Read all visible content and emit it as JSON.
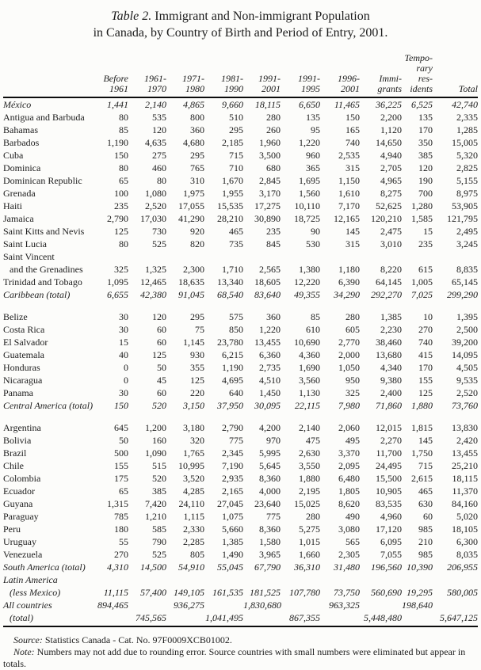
{
  "title": {
    "table_label": "Table 2.",
    "line1": " Immigrant and Non-immigrant Population",
    "line2": "in Canada, by Country of Birth and Period of Entry, 2001."
  },
  "colors": {
    "ink": "#1c1c1c",
    "background": "#fcfcfa",
    "rule": "#0c0c0c"
  },
  "table": {
    "columns": [
      "",
      "Before\n1961",
      "1961-\n1970",
      "1971-\n1980",
      "1981-\n1990",
      "1991-\n2001",
      "1991-\n1995",
      "1996-\n2001",
      "Immi-\ngrants",
      "Tempo-\nrary res-\nidents",
      "Total"
    ],
    "rows": [
      {
        "label": "México",
        "italic": true,
        "values": [
          "1,441",
          "2,140",
          "4,865",
          "9,660",
          "18,115",
          "6,650",
          "11,465",
          "36,225",
          "6,525",
          "42,740"
        ]
      },
      {
        "label": "Antigua and Barbuda",
        "values": [
          "80",
          "535",
          "800",
          "510",
          "280",
          "135",
          "150",
          "2,200",
          "135",
          "2,335"
        ]
      },
      {
        "label": "Bahamas",
        "values": [
          "85",
          "120",
          "360",
          "295",
          "260",
          "95",
          "165",
          "1,120",
          "170",
          "1,285"
        ]
      },
      {
        "label": "Barbados",
        "values": [
          "1,190",
          "4,635",
          "4,680",
          "2,185",
          "1,960",
          "1,220",
          "740",
          "14,650",
          "350",
          "15,005"
        ]
      },
      {
        "label": "Cuba",
        "values": [
          "150",
          "275",
          "295",
          "715",
          "3,500",
          "960",
          "2,535",
          "4,940",
          "385",
          "5,320"
        ]
      },
      {
        "label": "Dominica",
        "values": [
          "80",
          "460",
          "765",
          "710",
          "680",
          "365",
          "315",
          "2,705",
          "120",
          "2,825"
        ]
      },
      {
        "label": "Dominican Republic",
        "values": [
          "65",
          "80",
          "310",
          "1,670",
          "2,845",
          "1,695",
          "1,150",
          "4,965",
          "190",
          "5,155"
        ]
      },
      {
        "label": "Grenada",
        "values": [
          "100",
          "1,080",
          "1,975",
          "1,955",
          "3,170",
          "1,560",
          "1,610",
          "8,275",
          "700",
          "8,975"
        ]
      },
      {
        "label": "Haiti",
        "values": [
          "235",
          "2,520",
          "17,055",
          "15,535",
          "17,275",
          "10,110",
          "7,170",
          "52,625",
          "1,280",
          "53,905"
        ]
      },
      {
        "label": "Jamaica",
        "values": [
          "2,790",
          "17,030",
          "41,290",
          "28,210",
          "30,890",
          "18,725",
          "12,165",
          "120,210",
          "1,585",
          "121,795"
        ]
      },
      {
        "label": "Saint Kitts and Nevis",
        "values": [
          "125",
          "730",
          "920",
          "465",
          "235",
          "90",
          "145",
          "2,475",
          "15",
          "2,495"
        ]
      },
      {
        "label": "Saint Lucia",
        "values": [
          "80",
          "525",
          "820",
          "735",
          "845",
          "530",
          "315",
          "3,010",
          "235",
          "3,245"
        ]
      },
      {
        "label": "Saint Vincent",
        "values": [
          "",
          "",
          "",
          "",
          "",
          "",
          "",
          "",
          "",
          ""
        ]
      },
      {
        "label": "and the Grenadines",
        "indent": true,
        "values": [
          "325",
          "1,325",
          "2,300",
          "1,710",
          "2,565",
          "1,380",
          "1,180",
          "8,220",
          "615",
          "8,835"
        ]
      },
      {
        "label": "Trinidad and Tobago",
        "values": [
          "1,095",
          "12,465",
          "18,635",
          "13,340",
          "18,605",
          "12,220",
          "6,390",
          "64,145",
          "1,005",
          "65,145"
        ]
      },
      {
        "label": "Caribbean (total)",
        "italic": true,
        "values": [
          "6,655",
          "42,380",
          "91,045",
          "68,540",
          "83,640",
          "49,355",
          "34,290",
          "292,270",
          "7,025",
          "299,290"
        ]
      },
      {
        "spacer": true
      },
      {
        "label": "Belize",
        "values": [
          "30",
          "120",
          "295",
          "575",
          "360",
          "85",
          "280",
          "1,385",
          "10",
          "1,395"
        ]
      },
      {
        "label": "Costa Rica",
        "values": [
          "30",
          "60",
          "75",
          "850",
          "1,220",
          "610",
          "605",
          "2,230",
          "270",
          "2,500"
        ]
      },
      {
        "label": "El Salvador",
        "values": [
          "15",
          "60",
          "1,145",
          "23,780",
          "13,455",
          "10,690",
          "2,770",
          "38,460",
          "740",
          "39,200"
        ]
      },
      {
        "label": "Guatemala",
        "values": [
          "40",
          "125",
          "930",
          "6,215",
          "6,360",
          "4,360",
          "2,000",
          "13,680",
          "415",
          "14,095"
        ]
      },
      {
        "label": "Honduras",
        "values": [
          "0",
          "50",
          "355",
          "1,190",
          "2,735",
          "1,690",
          "1,050",
          "4,340",
          "170",
          "4,505"
        ]
      },
      {
        "label": "Nicaragua",
        "values": [
          "0",
          "45",
          "125",
          "4,695",
          "4,510",
          "3,560",
          "950",
          "9,380",
          "155",
          "9,535"
        ]
      },
      {
        "label": "Panama",
        "values": [
          "30",
          "60",
          "220",
          "640",
          "1,450",
          "1,130",
          "325",
          "2,400",
          "125",
          "2,520"
        ]
      },
      {
        "label": "Central America (total)",
        "italic": true,
        "values": [
          "150",
          "520",
          "3,150",
          "37,950",
          "30,095",
          "22,115",
          "7,980",
          "71,860",
          "1,880",
          "73,760"
        ]
      },
      {
        "spacer": true
      },
      {
        "label": "Argentina",
        "values": [
          "645",
          "1,200",
          "3,180",
          "2,790",
          "4,200",
          "2,140",
          "2,060",
          "12,015",
          "1,815",
          "13,830"
        ]
      },
      {
        "label": "Bolivia",
        "values": [
          "50",
          "160",
          "320",
          "775",
          "970",
          "475",
          "495",
          "2,270",
          "145",
          "2,420"
        ]
      },
      {
        "label": "Brazil",
        "values": [
          "500",
          "1,090",
          "1,765",
          "2,345",
          "5,995",
          "2,630",
          "3,370",
          "11,700",
          "1,750",
          "13,455"
        ]
      },
      {
        "label": "Chile",
        "values": [
          "155",
          "515",
          "10,995",
          "7,190",
          "5,645",
          "3,550",
          "2,095",
          "24,495",
          "715",
          "25,210"
        ]
      },
      {
        "label": "Colombia",
        "values": [
          "175",
          "520",
          "3,520",
          "2,935",
          "8,360",
          "1,880",
          "6,480",
          "15,500",
          "2,615",
          "18,115"
        ]
      },
      {
        "label": "Ecuador",
        "values": [
          "65",
          "385",
          "4,285",
          "2,165",
          "4,000",
          "2,195",
          "1,805",
          "10,905",
          "465",
          "11,370"
        ]
      },
      {
        "label": "Guyana",
        "values": [
          "1,315",
          "7,420",
          "24,110",
          "27,045",
          "23,640",
          "15,025",
          "8,620",
          "83,535",
          "630",
          "84,160"
        ]
      },
      {
        "label": "Paraguay",
        "values": [
          "785",
          "1,210",
          "1,115",
          "1,075",
          "775",
          "280",
          "490",
          "4,960",
          "60",
          "5,020"
        ]
      },
      {
        "label": "Peru",
        "values": [
          "180",
          "585",
          "2,330",
          "5,660",
          "8,360",
          "5,275",
          "3,080",
          "17,120",
          "985",
          "18,105"
        ]
      },
      {
        "label": "Uruguay",
        "values": [
          "55",
          "790",
          "2,285",
          "1,385",
          "1,580",
          "1,015",
          "565",
          "6,095",
          "210",
          "6,300"
        ]
      },
      {
        "label": "Venezuela",
        "values": [
          "270",
          "525",
          "805",
          "1,490",
          "3,965",
          "1,660",
          "2,305",
          "7,055",
          "985",
          "8,035"
        ]
      },
      {
        "label": "South America (total)",
        "italic": true,
        "values": [
          "4,310",
          "14,500",
          "54,910",
          "55,045",
          "67,790",
          "36,310",
          "31,480",
          "196,560",
          "10,390",
          "206,955"
        ]
      },
      {
        "label": "Latin America",
        "italic": true,
        "values": [
          "",
          "",
          "",
          "",
          "",
          "",
          "",
          "",
          "",
          ""
        ]
      },
      {
        "label": "(less Mexico)",
        "italic": true,
        "indent": true,
        "values": [
          "11,115",
          "57,400",
          "149,105",
          "161,535",
          "181,525",
          "107,780",
          "73,750",
          "560,690",
          "19,295",
          "580,005"
        ]
      },
      {
        "label": "All countries",
        "italic": true,
        "values": [
          "894,465",
          "",
          "936,275",
          "",
          "1,830,680",
          "",
          "963,325",
          "",
          "198,640",
          ""
        ]
      },
      {
        "label": "(total)",
        "italic": true,
        "indent": true,
        "last": true,
        "values": [
          "",
          "745,565",
          "",
          "1,041,495",
          "",
          "867,355",
          "",
          "5,448,480",
          "",
          "5,647,125"
        ]
      }
    ]
  },
  "footer": {
    "source_label": "Source:",
    "source_text": " Statistics Canada - Cat. No. 97F0009XCB01002.",
    "note_label": "Note:",
    "note_text": " Numbers may not add due to rounding error. Source countries with small numbers were eliminated but appear in totals."
  }
}
